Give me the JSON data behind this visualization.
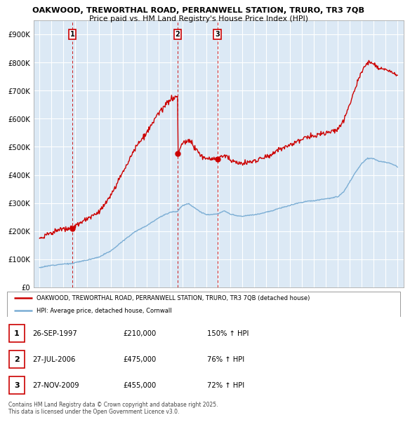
{
  "title_line1": "OAKWOOD, TREWORTHAL ROAD, PERRANWELL STATION, TRURO, TR3 7QB",
  "title_line2": "Price paid vs. HM Land Registry's House Price Index (HPI)",
  "legend_red": "OAKWOOD, TREWORTHAL ROAD, PERRANWELL STATION, TRURO, TR3 7QB (detached house)",
  "legend_blue": "HPI: Average price, detached house, Cornwall",
  "footer": "Contains HM Land Registry data © Crown copyright and database right 2025.\nThis data is licensed under the Open Government Licence v3.0.",
  "table": [
    {
      "num": "1",
      "date": "26-SEP-1997",
      "price": "£210,000",
      "hpi": "150% ↑ HPI"
    },
    {
      "num": "2",
      "date": "27-JUL-2006",
      "price": "£475,000",
      "hpi": "76% ↑ HPI"
    },
    {
      "num": "3",
      "date": "27-NOV-2009",
      "price": "£455,000",
      "hpi": "72% ↑ HPI"
    }
  ],
  "sale_dates_decimal": [
    1997.74,
    2006.57,
    2009.9
  ],
  "sale_prices": [
    210000,
    475000,
    455000
  ],
  "sale_labels": [
    "1",
    "2",
    "3"
  ],
  "red_color": "#cc0000",
  "blue_color": "#7aadd4",
  "dashed_color": "#cc0000",
  "chart_bg": "#dce9f5",
  "ylim": [
    0,
    950000
  ],
  "yticks": [
    0,
    100000,
    200000,
    300000,
    400000,
    500000,
    600000,
    700000,
    800000,
    900000
  ],
  "ytick_labels": [
    "£0",
    "£100K",
    "£200K",
    "£300K",
    "£400K",
    "£500K",
    "£600K",
    "£700K",
    "£800K",
    "£900K"
  ],
  "xlim_start": 1994.5,
  "xlim_end": 2025.5,
  "background_color": "#ffffff",
  "grid_color": "#ffffff"
}
